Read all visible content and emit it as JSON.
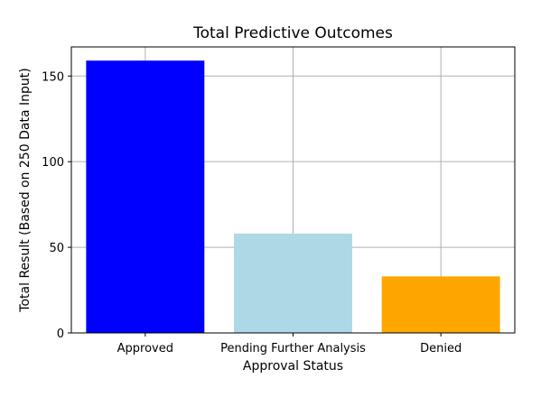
{
  "chart_data": {
    "type": "bar",
    "title": "Total Predictive Outcomes",
    "xlabel": "Approval Status",
    "ylabel": "Total Result (Based on 250 Data Input)",
    "categories": [
      "Approved",
      "Pending Further Analysis",
      "Denied"
    ],
    "values": [
      159,
      58,
      33
    ],
    "colors": [
      "#0000ff",
      "#add8e6",
      "#ffa500"
    ],
    "ylim": [
      0,
      167
    ],
    "yticks": [
      0,
      50,
      100,
      150
    ],
    "grid": true
  }
}
